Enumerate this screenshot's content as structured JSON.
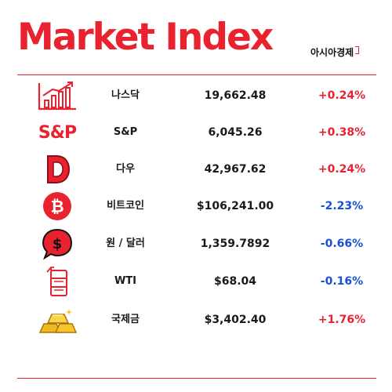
{
  "header": {
    "title": "Market Index",
    "brand": "아시아경제"
  },
  "colors": {
    "accent": "#e8232f",
    "up": "#e8232f",
    "down": "#1a4fd6"
  },
  "rows": [
    {
      "name": "나스닥",
      "value": "19,662.48",
      "change": "+0.24%",
      "direction": "up",
      "icon": "bar-chart-icon"
    },
    {
      "name": "S&P",
      "value": "6,045.26",
      "change": "+0.38%",
      "direction": "up",
      "icon": "sp-logo-icon",
      "icon_text": "S&P"
    },
    {
      "name": "다우",
      "value": "42,967.62",
      "change": "+0.24%",
      "direction": "up",
      "icon": "d-letter-icon"
    },
    {
      "name": "비트코인",
      "value": "$106,241.00",
      "change": "-2.23%",
      "direction": "down",
      "icon": "bitcoin-icon"
    },
    {
      "name": "원 / 달러",
      "value": "1,359.7892",
      "change": "-0.66%",
      "direction": "down",
      "icon": "dollar-bubble-icon"
    },
    {
      "name": "WTI",
      "value": "$68.04",
      "change": "-0.16%",
      "direction": "down",
      "icon": "oil-barrel-icon"
    },
    {
      "name": "국제금",
      "value": "$3,402.40",
      "change": "+1.76%",
      "direction": "up",
      "icon": "gold-bars-icon"
    }
  ]
}
